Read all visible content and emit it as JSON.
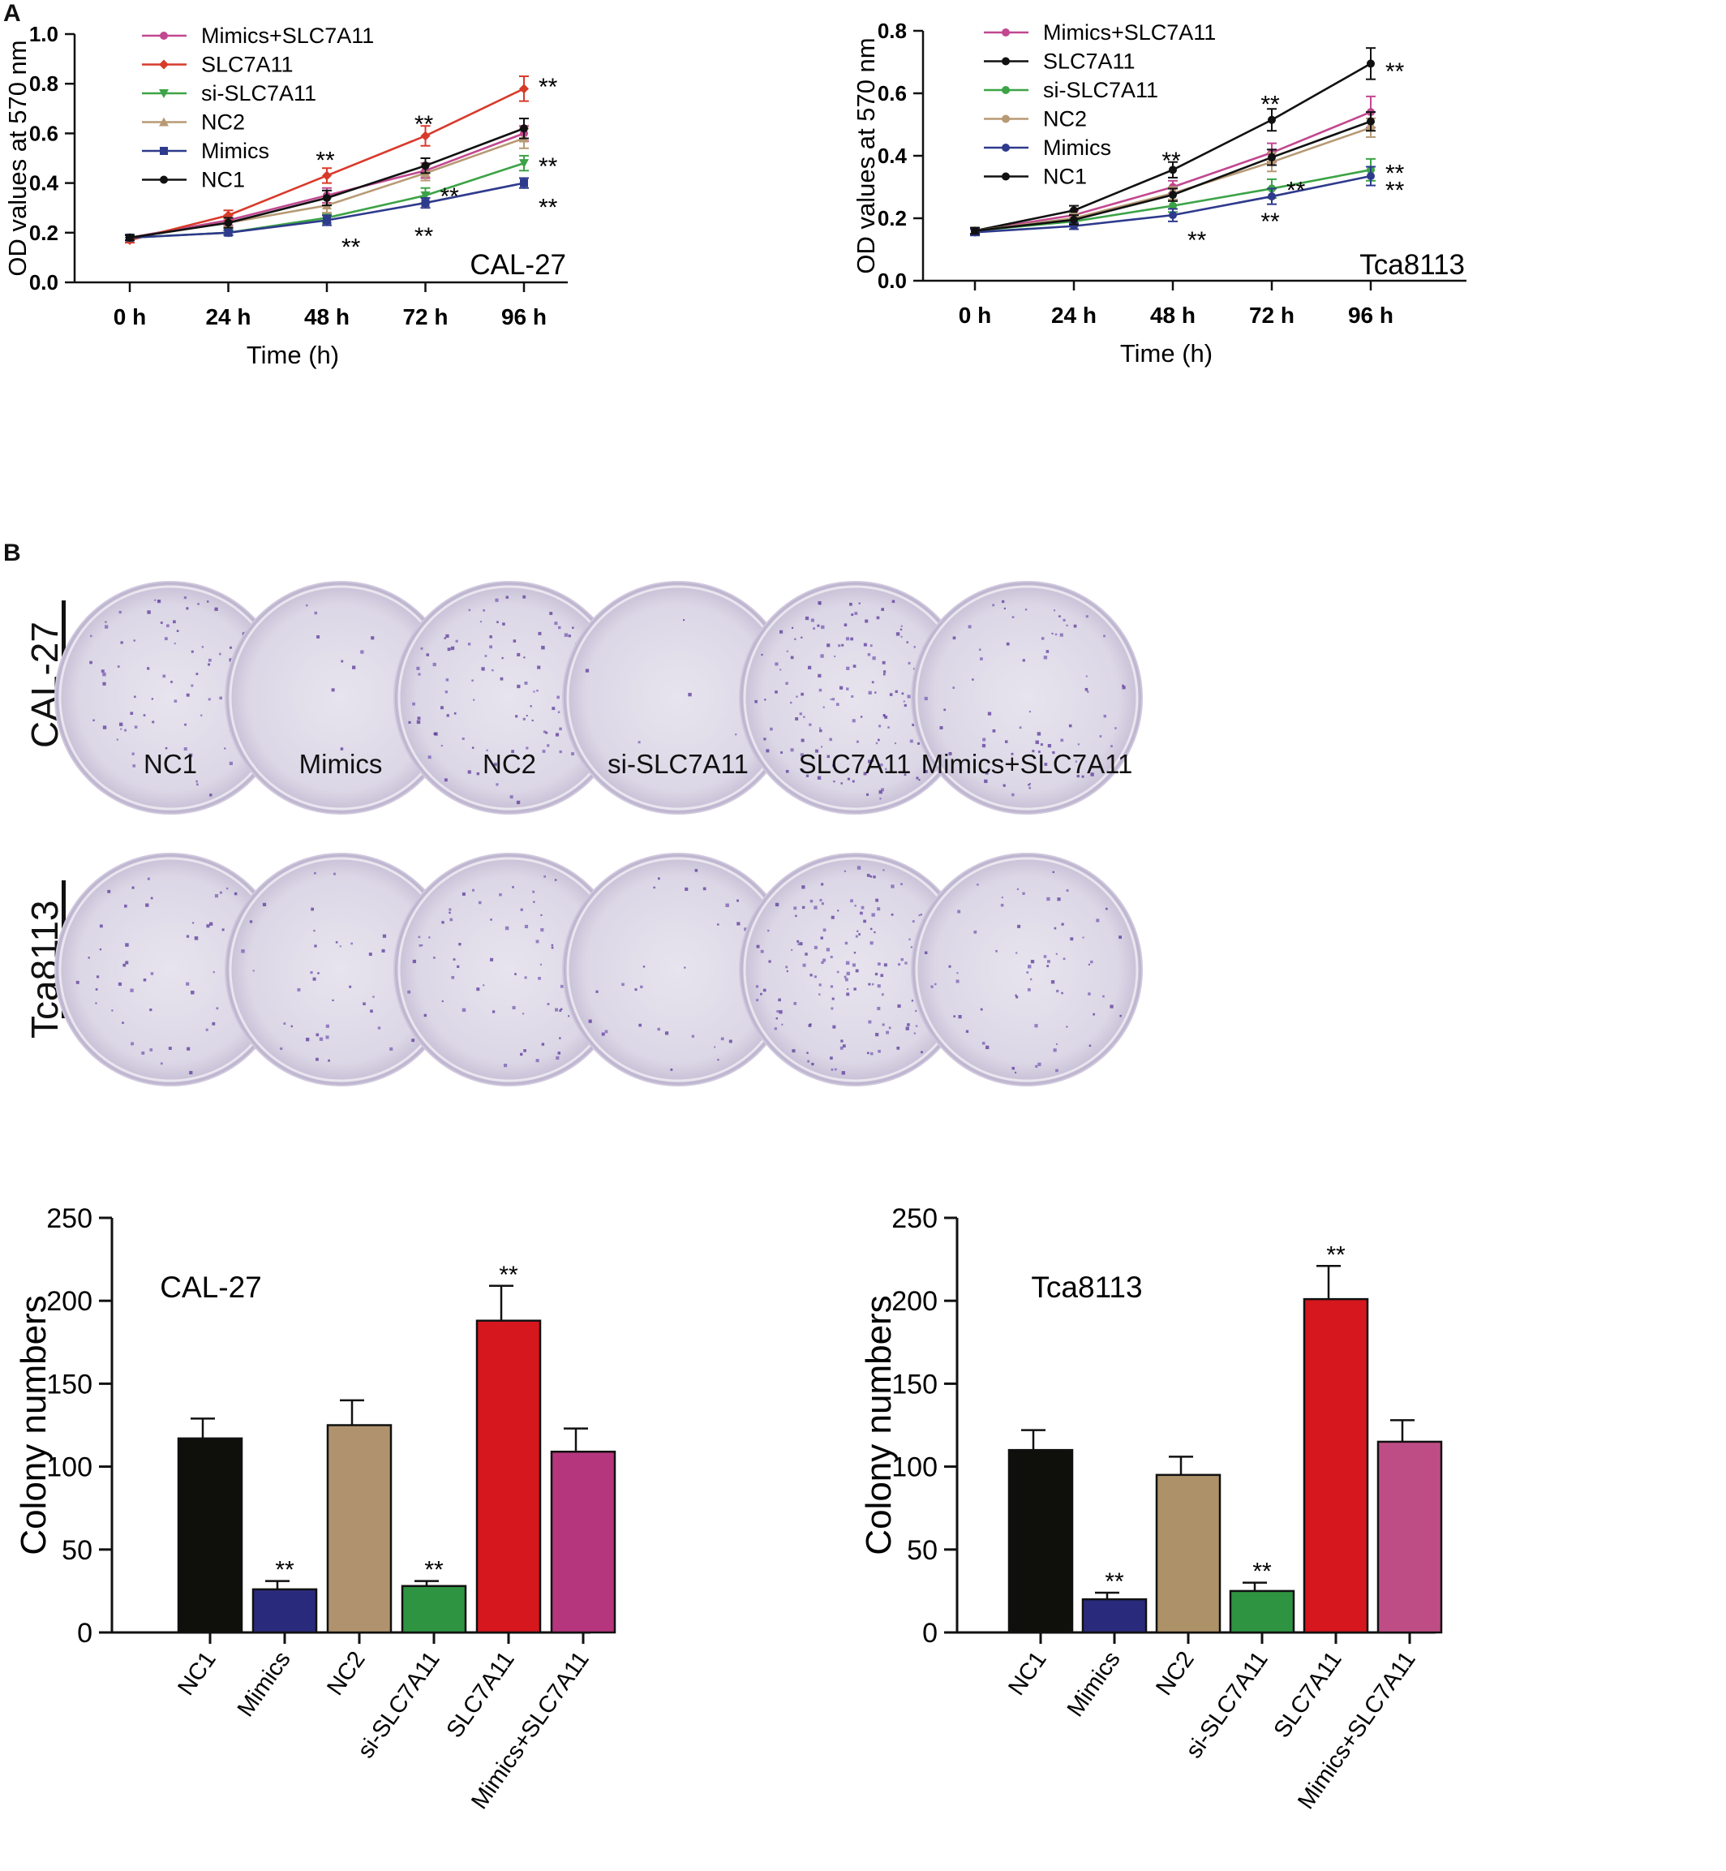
{
  "panels": {
    "a": "A",
    "b": "B"
  },
  "line_legend": [
    "Mimics+SLC7A11",
    "SLC7A11",
    "si-SLC7A11",
    "NC2",
    "Mimics",
    "NC1"
  ],
  "colony_images": {
    "row_labels": [
      "CAL-27",
      "Tca8113"
    ],
    "dish_labels": [
      "NC1",
      "Mimics",
      "NC2",
      "si-SLC7A11",
      "SLC7A11",
      "Mimics+SLC7A11"
    ]
  },
  "chart_data": [
    {
      "type": "line",
      "cell_line": "CAL-27",
      "x": [
        "0 h",
        "24 h",
        "48 h",
        "72 h",
        "96 h"
      ],
      "xlabel": "Time (h)",
      "ylabel": "OD values at 570 nm",
      "ylim": [
        0,
        1.0
      ],
      "yticks": [
        "0.0",
        "0.2",
        "0.4",
        "0.6",
        "0.8",
        "1.0"
      ],
      "legend_position": "top-left",
      "grid": false,
      "series": [
        {
          "name": "Mimics+SLC7A11",
          "color": "#c2478f",
          "marker": "circle",
          "values": [
            0.18,
            0.25,
            0.35,
            0.45,
            0.6
          ],
          "err": [
            0.01,
            0.02,
            0.03,
            0.03,
            0.03
          ]
        },
        {
          "name": "SLC7A11",
          "color": "#d83a2a",
          "marker": "diamond",
          "values": [
            0.17,
            0.27,
            0.43,
            0.59,
            0.78
          ],
          "err": [
            0.01,
            0.02,
            0.03,
            0.04,
            0.05
          ]
        },
        {
          "name": "si-SLC7A11",
          "color": "#3ca346",
          "marker": "triangle-down",
          "values": [
            0.18,
            0.2,
            0.26,
            0.35,
            0.48
          ],
          "err": [
            0.01,
            0.01,
            0.02,
            0.03,
            0.03
          ]
        },
        {
          "name": "NC2",
          "color": "#b79a74",
          "marker": "triangle-up",
          "values": [
            0.18,
            0.24,
            0.31,
            0.44,
            0.58
          ],
          "err": [
            0.01,
            0.02,
            0.03,
            0.03,
            0.04
          ]
        },
        {
          "name": "Mimics",
          "color": "#2e3a8c",
          "marker": "square",
          "values": [
            0.18,
            0.2,
            0.25,
            0.32,
            0.4
          ],
          "err": [
            0.01,
            0.01,
            0.02,
            0.02,
            0.02
          ]
        },
        {
          "name": "NC1",
          "color": "#111111",
          "marker": "circle",
          "values": [
            0.18,
            0.24,
            0.34,
            0.47,
            0.62
          ],
          "err": [
            0.01,
            0.02,
            0.03,
            0.03,
            0.04
          ]
        }
      ],
      "annotations": [
        {
          "x": "48 h",
          "y": 0.505,
          "text": "**"
        },
        {
          "x": "72 h",
          "y": 0.65,
          "text": "**"
        },
        {
          "x": "96 h",
          "y": 0.8,
          "text": "**",
          "side": "right"
        },
        {
          "x": "72 h",
          "y": 0.36,
          "text": "**",
          "side": "right"
        },
        {
          "x": "96 h",
          "y": 0.48,
          "text": "**",
          "side": "right"
        },
        {
          "x": "48 h",
          "y": 0.155,
          "text": "**",
          "side": "right"
        },
        {
          "x": "72 h",
          "y": 0.2,
          "text": "**"
        },
        {
          "x": "96 h",
          "y": 0.315,
          "text": "**",
          "side": "right"
        }
      ],
      "corner_label": "CAL-27"
    },
    {
      "type": "line",
      "cell_line": "Tca8113",
      "x": [
        "0 h",
        "24 h",
        "48 h",
        "72 h",
        "96 h"
      ],
      "xlabel": "Time (h)",
      "ylabel": "OD values at 570 nm",
      "ylim": [
        0,
        0.8
      ],
      "yticks": [
        "0.0",
        "0.2",
        "0.4",
        "0.6",
        "0.8"
      ],
      "legend_position": "top-left",
      "grid": false,
      "series": [
        {
          "name": "Mimics+SLC7A11",
          "color": "#c2478f",
          "marker": "circle",
          "values": [
            0.16,
            0.21,
            0.3,
            0.41,
            0.54
          ],
          "err": [
            0.01,
            0.015,
            0.02,
            0.03,
            0.05
          ]
        },
        {
          "name": "SLC7A11",
          "color": "#111111",
          "marker": "circle",
          "values": [
            0.16,
            0.225,
            0.355,
            0.515,
            0.695
          ],
          "err": [
            0.01,
            0.015,
            0.025,
            0.035,
            0.05
          ]
        },
        {
          "name": "si-SLC7A11",
          "color": "#3ca346",
          "marker": "circle",
          "values": [
            0.16,
            0.19,
            0.24,
            0.295,
            0.355
          ],
          "err": [
            0.01,
            0.01,
            0.02,
            0.03,
            0.035
          ]
        },
        {
          "name": "NC2",
          "color": "#b79a74",
          "marker": "circle",
          "values": [
            0.16,
            0.2,
            0.28,
            0.38,
            0.49
          ],
          "err": [
            0.01,
            0.015,
            0.02,
            0.03,
            0.03
          ]
        },
        {
          "name": "Mimics",
          "color": "#2e3a8c",
          "marker": "circle",
          "values": [
            0.155,
            0.175,
            0.21,
            0.27,
            0.335
          ],
          "err": [
            0.01,
            0.01,
            0.02,
            0.025,
            0.03
          ]
        },
        {
          "name": "NC1",
          "color": "#111111",
          "marker": "circle",
          "values": [
            0.16,
            0.195,
            0.275,
            0.395,
            0.51
          ],
          "err": [
            0.01,
            0.015,
            0.02,
            0.025,
            0.03
          ]
        }
      ],
      "annotations": [
        {
          "x": "48 h",
          "y": 0.395,
          "text": "**"
        },
        {
          "x": "72 h",
          "y": 0.575,
          "text": "**"
        },
        {
          "x": "96 h",
          "y": 0.68,
          "text": "**",
          "side": "right"
        },
        {
          "x": "72 h",
          "y": 0.3,
          "text": "**",
          "side": "right"
        },
        {
          "x": "96 h",
          "y": 0.355,
          "text": "**",
          "side": "right"
        },
        {
          "x": "48 h",
          "y": 0.14,
          "text": "**",
          "side": "right"
        },
        {
          "x": "72 h",
          "y": 0.2,
          "text": "**"
        },
        {
          "x": "96 h",
          "y": 0.3,
          "text": "**",
          "side": "right"
        }
      ],
      "corner_label": "Tca8113"
    },
    {
      "type": "bar",
      "cell_line": "CAL-27",
      "categories": [
        "NC1",
        "Mimics",
        "NC2",
        "si-SLC7A11",
        "SLC7A11",
        "Mimics+SLC7A11"
      ],
      "values": [
        117,
        26,
        125,
        28,
        188,
        109
      ],
      "errors": [
        12,
        5,
        15,
        3,
        21,
        14
      ],
      "colors": [
        "#0f0f0b",
        "#2a2a7d",
        "#b0936e",
        "#2f9441",
        "#d6171d",
        "#b6367d"
      ],
      "significance": [
        "",
        "**",
        "",
        "**",
        "**",
        ""
      ],
      "ylabel": "Colony  numbers",
      "ylim": [
        0,
        250
      ],
      "yticks": [
        "0",
        "50",
        "100",
        "150",
        "200",
        "250"
      ],
      "inset_label": "CAL-27",
      "grid": false
    },
    {
      "type": "bar",
      "cell_line": "Tca8113",
      "categories": [
        "NC1",
        "Mimics",
        "NC2",
        "si-SLC7A11",
        "SLC7A11",
        "Mimics+SLC7A11"
      ],
      "values": [
        110,
        20,
        95,
        25,
        201,
        115
      ],
      "errors": [
        12,
        4,
        11,
        5,
        20,
        13
      ],
      "colors": [
        "#0f0f0b",
        "#2a2a7d",
        "#ad9269",
        "#2f9441",
        "#d6171d",
        "#bf4d85"
      ],
      "significance": [
        "",
        "**",
        "",
        "**",
        "**",
        ""
      ],
      "ylabel": "Colony  numbers",
      "ylim": [
        0,
        250
      ],
      "yticks": [
        "0",
        "50",
        "100",
        "150",
        "200",
        "250"
      ],
      "inset_label": "Tca8113",
      "grid": false
    }
  ]
}
